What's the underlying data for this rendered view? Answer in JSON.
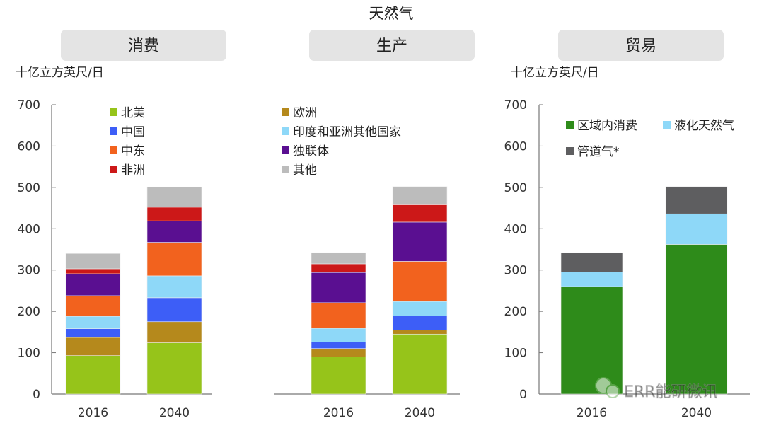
{
  "title": "天然气",
  "unit_label": "十亿立方英尺/日",
  "watermark": "ERR能研微讯",
  "chart_data": [
    {
      "type": "bar",
      "stacked": true,
      "panel_title": "消费",
      "ylabel": "十亿立方英尺/日",
      "ylim": [
        0,
        700
      ],
      "yticks": [
        0,
        100,
        200,
        300,
        400,
        500,
        600,
        700
      ],
      "categories": [
        "2016",
        "2040"
      ],
      "series": [
        {
          "name": "北美",
          "color": "#96c41a",
          "values": [
            93,
            124
          ]
        },
        {
          "name": "欧洲",
          "color": "#b5891c",
          "values": [
            44,
            51
          ]
        },
        {
          "name": "中国",
          "color": "#3d5ef7",
          "values": [
            21,
            58
          ]
        },
        {
          "name": "印度和亚洲其他国家",
          "color": "#8ed8f8",
          "values": [
            30,
            53
          ]
        },
        {
          "name": "中东",
          "color": "#f2621e",
          "values": [
            50,
            81
          ]
        },
        {
          "name": "独联体",
          "color": "#5a0f91",
          "values": [
            53,
            52
          ]
        },
        {
          "name": "非洲",
          "color": "#cc1818",
          "values": [
            12,
            33
          ]
        },
        {
          "name": "其他",
          "color": "#bcbcbc",
          "values": [
            37,
            49
          ]
        }
      ]
    },
    {
      "type": "bar",
      "stacked": true,
      "panel_title": "生产",
      "ylim": [
        0,
        700
      ],
      "categories": [
        "2016",
        "2040"
      ],
      "series": [
        {
          "name": "北美",
          "color": "#96c41a",
          "values": [
            90,
            145
          ]
        },
        {
          "name": "欧洲",
          "color": "#b5891c",
          "values": [
            20,
            10
          ]
        },
        {
          "name": "中国",
          "color": "#3d5ef7",
          "values": [
            16,
            34
          ]
        },
        {
          "name": "印度和亚洲其他国家",
          "color": "#8ed8f8",
          "values": [
            33,
            35
          ]
        },
        {
          "name": "中东",
          "color": "#f2621e",
          "values": [
            62,
            97
          ]
        },
        {
          "name": "独联体",
          "color": "#5a0f91",
          "values": [
            73,
            95
          ]
        },
        {
          "name": "非洲",
          "color": "#cc1818",
          "values": [
            21,
            42
          ]
        },
        {
          "name": "其他",
          "color": "#bcbcbc",
          "values": [
            27,
            44
          ]
        }
      ]
    },
    {
      "type": "bar",
      "stacked": true,
      "panel_title": "贸易",
      "ylabel": "十亿立方英尺/日",
      "ylim": [
        0,
        700
      ],
      "yticks": [
        0,
        100,
        200,
        300,
        400,
        500,
        600,
        700
      ],
      "categories": [
        "2016",
        "2040"
      ],
      "series": [
        {
          "name": "区域内消费",
          "color": "#2e8b1a",
          "values": [
            260,
            362
          ]
        },
        {
          "name": "液化天然气",
          "color": "#8ed8f8",
          "values": [
            35,
            74
          ]
        },
        {
          "name": "管道气*",
          "color": "#5e5e60",
          "values": [
            47,
            66
          ]
        }
      ]
    }
  ]
}
